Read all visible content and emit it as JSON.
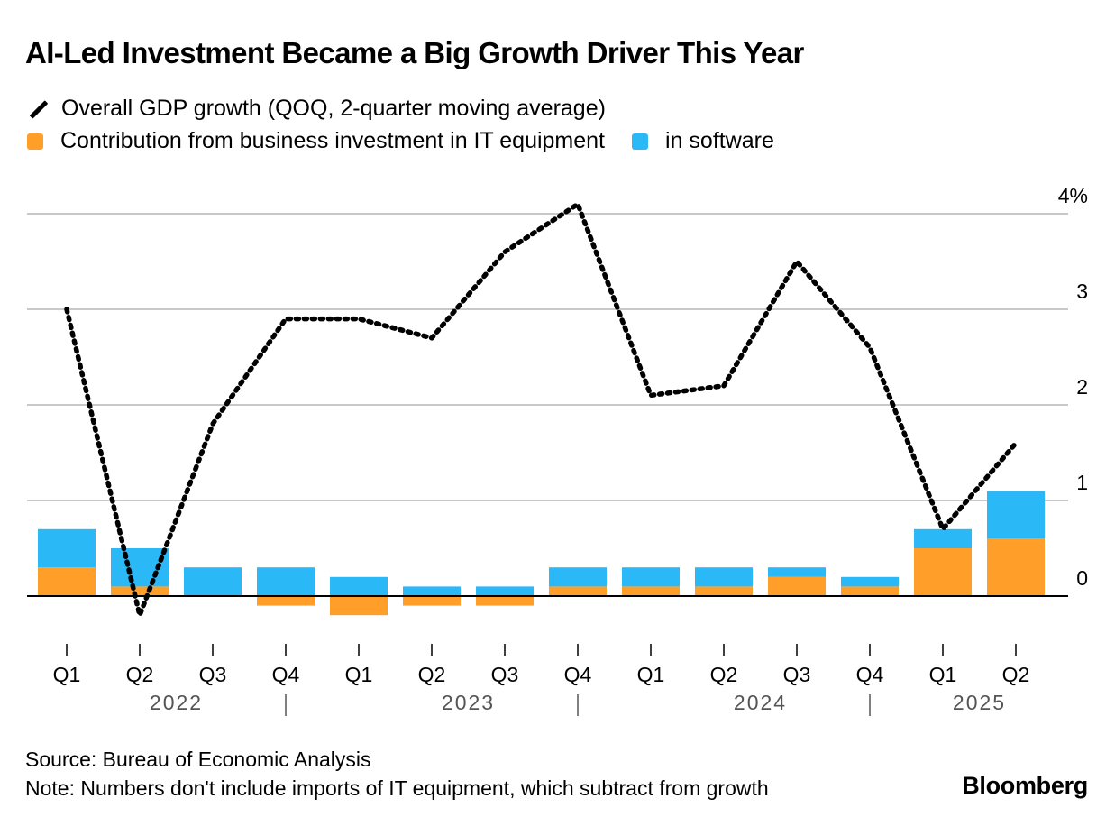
{
  "header": {
    "title": "AI-Led Investment Became a Big Growth Driver This Year"
  },
  "legend": [
    {
      "key": "gdp",
      "label": "Overall GDP growth (QOQ, 2-quarter moving average)",
      "icon": "dotted-line-icon"
    },
    {
      "key": "it_equipment",
      "label": "Contribution from business investment in IT equipment",
      "icon": "square-swatch-icon",
      "color": "#FF9F2A"
    },
    {
      "key": "software",
      "label": "in software",
      "icon": "square-swatch-icon",
      "color": "#2BB8F7"
    }
  ],
  "chart_data": {
    "type": "bar",
    "subtype": "stacked bar with line overlay",
    "title": "AI-Led Investment Became a Big Growth Driver This Year",
    "xlabel": "",
    "ylabel": "",
    "ylim": [
      -0.4,
      4.1
    ],
    "y_ticks": [
      0,
      1,
      2,
      3,
      4
    ],
    "y_tick_labels": [
      "0",
      "1",
      "2",
      "3",
      "4%"
    ],
    "y_axis_position": "right",
    "grid": true,
    "legend_position": "top-left",
    "categories": [
      "Q1",
      "Q2",
      "Q3",
      "Q4",
      "Q1",
      "Q2",
      "Q3",
      "Q4",
      "Q1",
      "Q2",
      "Q3",
      "Q4",
      "Q1",
      "Q2"
    ],
    "year_groups": [
      {
        "label": "2022",
        "start": 0,
        "end": 3
      },
      {
        "label": "2023",
        "start": 4,
        "end": 7
      },
      {
        "label": "2024",
        "start": 8,
        "end": 11
      },
      {
        "label": "2025",
        "start": 12,
        "end": 13
      }
    ],
    "series": [
      {
        "name": "Contribution from business investment in IT equipment",
        "type": "bar",
        "color": "#FF9F2A",
        "values": [
          0.3,
          0.1,
          0.0,
          -0.1,
          -0.2,
          -0.1,
          -0.1,
          0.1,
          0.1,
          0.1,
          0.2,
          0.1,
          0.5,
          0.6
        ]
      },
      {
        "name": "in software",
        "type": "bar",
        "color": "#2BB8F7",
        "values": [
          0.4,
          0.4,
          0.3,
          0.3,
          0.2,
          0.1,
          0.1,
          0.2,
          0.2,
          0.2,
          0.1,
          0.1,
          0.2,
          0.5
        ]
      },
      {
        "name": "Overall GDP growth (QOQ, 2-quarter moving average)",
        "type": "line",
        "style": "dotted",
        "color": "#000000",
        "values": [
          3.0,
          -0.2,
          1.8,
          2.9,
          2.9,
          2.7,
          3.6,
          4.1,
          2.1,
          2.2,
          3.5,
          2.6,
          0.7,
          1.6
        ]
      }
    ]
  },
  "footer": {
    "source": "Source: Bureau of Economic Analysis",
    "note": "Note: Numbers don't include imports of IT equipment, which subtract from growth",
    "brand": "Bloomberg"
  }
}
